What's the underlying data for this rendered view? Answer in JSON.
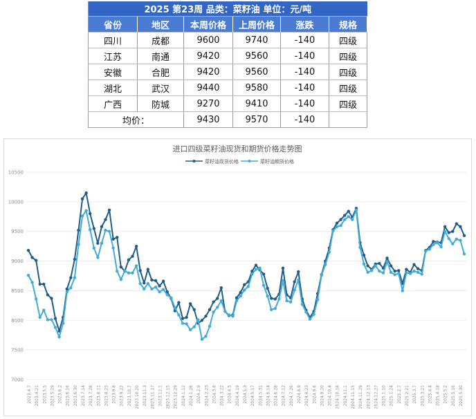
{
  "table": {
    "title": "2025 第23周    品类：菜籽油    单位：元/吨",
    "headers": [
      "省份",
      "地区",
      "本周价格",
      "上周价格",
      "涨跌",
      "规格"
    ],
    "rows": [
      [
        "四川",
        "成都",
        "9600",
        "9740",
        "-140",
        "四级"
      ],
      [
        "江苏",
        "南通",
        "9420",
        "9560",
        "-140",
        "四级"
      ],
      [
        "安徽",
        "合肥",
        "9420",
        "9560",
        "-140",
        "四级"
      ],
      [
        "湖北",
        "武汉",
        "9440",
        "9580",
        "-140",
        "四级"
      ],
      [
        "广西",
        "防城",
        "9270",
        "9410",
        "-140",
        "四级"
      ]
    ],
    "average": {
      "label": "均价：",
      "this_week": "9430",
      "last_week": "9570",
      "change": "-140",
      "spec": ""
    }
  },
  "chart_data": {
    "type": "line",
    "title": "进口四级菜籽油现货和期货价格走势图",
    "legend_position": "top-center",
    "grid": true,
    "ylim": [
      7000,
      10500
    ],
    "yticks": [
      7000,
      7500,
      8000,
      8500,
      9000,
      9500,
      10000,
      10500
    ],
    "x_labels": [
      "2023.4.7",
      "2023.4.21",
      "2023.5.5",
      "2023.5.19",
      "2023.6.2",
      "2023.6.16",
      "2023.6.30",
      "2023.7.14",
      "2023.7.28",
      "2023.8.11",
      "2023.8.25",
      "2023.9.8",
      "2023.9.22",
      "2023.10.7",
      "2023.10.20",
      "2023.11.3",
      "2023.11.17",
      "2023.12.1",
      "2023.12.15",
      "2023.12.29",
      "2024.1.12",
      "2024.1.26",
      "2024.2.9",
      "2024.2.23",
      "2024.3.8",
      "2024.3.22",
      "2024.4.5",
      "2024.4.19",
      "2024.5.3",
      "2024.5.17",
      "2024.5.31",
      "2024.6.14",
      "2024.6.28",
      "2024.7.12",
      "2024.7.26",
      "2024.8.9",
      "2024.8.23",
      "2024.9.6",
      "2024.9.20",
      "2024.10.4",
      "2024.10.18",
      "2024.11.1",
      "2024.11.15",
      "2024.11.29",
      "2024.12.13",
      "2024.12.27",
      "2025.1.10",
      "2025.1.24",
      "2025.2.7",
      "2025.2.21",
      "2025.3.7",
      "2025.3.21",
      "2025.4.4",
      "2025.4.18",
      "2025.5.2",
      "2025.5.16",
      "2025.5.30"
    ],
    "series": [
      {
        "name": "菜籽油现货价格",
        "color": "#1f5c87",
        "values": [
          9180,
          9060,
          9010,
          8610,
          8610,
          8430,
          8370,
          8030,
          7820,
          8050,
          8530,
          8720,
          9030,
          9520,
          10050,
          10150,
          9800,
          9550,
          9300,
          9580,
          9700,
          9860,
          9370,
          9400,
          8900,
          8830,
          9020,
          9080,
          9250,
          8840,
          8630,
          8860,
          8680,
          8670,
          8580,
          8660,
          8480,
          8370,
          8160,
          8300,
          8030,
          8050,
          8280,
          8180,
          7950,
          8000,
          8070,
          8180,
          8310,
          8370,
          8550,
          8150,
          8080,
          8090,
          8380,
          8470,
          8600,
          8650,
          8830,
          8930,
          8850,
          8780,
          8540,
          8370,
          8360,
          8440,
          8880,
          8430,
          8380,
          8650,
          8820,
          8360,
          8170,
          8050,
          8150,
          8450,
          8770,
          9000,
          9220,
          9530,
          9640,
          9700,
          9770,
          9840,
          9740,
          9890,
          9310,
          9100,
          8920,
          8860,
          8950,
          8960,
          8880,
          9050,
          8920,
          8830,
          8840,
          8620,
          8860,
          8810,
          8940,
          8870,
          8840,
          9180,
          9230,
          9330,
          9320,
          9310,
          9580,
          9480,
          9500,
          9630,
          9580,
          9430
        ]
      },
      {
        "name": "菜籽油期货价格",
        "color": "#42aad8",
        "values": [
          8760,
          8640,
          8360,
          8050,
          8170,
          8010,
          8010,
          7880,
          7720,
          7950,
          8480,
          8550,
          8720,
          9280,
          9760,
          9850,
          9530,
          9220,
          9060,
          9300,
          9520,
          9500,
          9220,
          8830,
          8690,
          8830,
          8800,
          8800,
          8920,
          8620,
          8530,
          8620,
          8530,
          8560,
          8480,
          8520,
          8430,
          8380,
          8210,
          8090,
          7950,
          7940,
          7840,
          7890,
          8010,
          7680,
          7730,
          7900,
          8140,
          8220,
          8330,
          8150,
          8090,
          8070,
          8330,
          8410,
          8510,
          8570,
          8780,
          8860,
          8880,
          8590,
          8410,
          8180,
          8200,
          8360,
          8670,
          8330,
          8310,
          8510,
          8680,
          8270,
          8140,
          8020,
          8100,
          8350,
          8760,
          8940,
          9150,
          9510,
          9580,
          9600,
          9700,
          9750,
          9700,
          9860,
          9230,
          8950,
          8810,
          8840,
          8920,
          8830,
          8800,
          8990,
          8810,
          8770,
          8790,
          8500,
          8800,
          8790,
          8830,
          8810,
          8780,
          9170,
          9200,
          9280,
          9310,
          9240,
          9500,
          9380,
          9290,
          9370,
          9350,
          9120
        ]
      }
    ]
  }
}
